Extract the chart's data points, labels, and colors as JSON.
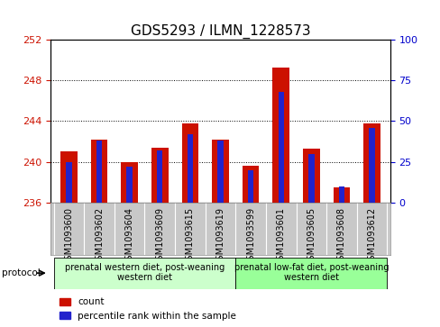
{
  "title": "GDS5293 / ILMN_1228573",
  "samples": [
    "GSM1093600",
    "GSM1093602",
    "GSM1093604",
    "GSM1093609",
    "GSM1093615",
    "GSM1093619",
    "GSM1093599",
    "GSM1093601",
    "GSM1093605",
    "GSM1093608",
    "GSM1093612"
  ],
  "red_values": [
    241.0,
    242.2,
    240.0,
    241.4,
    243.8,
    242.2,
    239.6,
    249.2,
    241.3,
    237.5,
    243.8
  ],
  "blue_percentiles": [
    25,
    38,
    22,
    32,
    42,
    38,
    20,
    68,
    30,
    10,
    46
  ],
  "ylim_left": [
    236,
    252
  ],
  "ylim_right": [
    0,
    100
  ],
  "yticks_left": [
    236,
    240,
    244,
    248,
    252
  ],
  "yticks_right": [
    0,
    25,
    50,
    75,
    100
  ],
  "bar_bottom": 236,
  "bar_width": 0.55,
  "red_color": "#cc1100",
  "blue_color": "#2222cc",
  "grid_color": "#000000",
  "bg_color": "#ffffff",
  "label_bg": "#c8c8c8",
  "group1_label": "prenatal western diet, post-weaning\nwestern diet",
  "group2_label": "prenatal low-fat diet, post-weaning\nwestern diet",
  "group1_indices": [
    0,
    1,
    2,
    3,
    4,
    5
  ],
  "group2_indices": [
    6,
    7,
    8,
    9,
    10
  ],
  "group1_color": "#ccffcc",
  "group2_color": "#99ff99",
  "protocol_label": "protocol",
  "legend_count_label": "count",
  "legend_pct_label": "percentile rank within the sample",
  "left_tick_color": "#cc1100",
  "right_tick_color": "#0000cc",
  "title_fontsize": 11,
  "tick_fontsize": 8,
  "label_fontsize": 7,
  "proto_fontsize": 7
}
